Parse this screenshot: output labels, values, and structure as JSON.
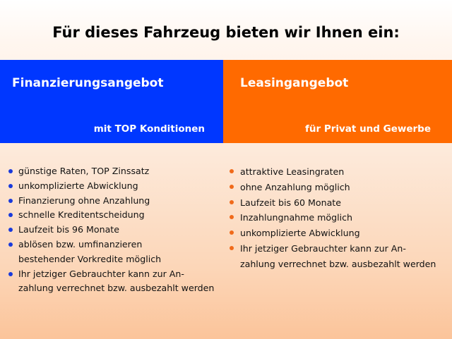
{
  "title": "Für dieses Fahrzeug bieten wir Ihnen ein:",
  "colors": {
    "financing": "#0037ff",
    "leasing": "#ff6a00"
  },
  "financing": {
    "heading": "Finanzierungsangebot",
    "subheading": "mit TOP Konditionen",
    "items": [
      "günstige Raten, TOP Zinssatz",
      "unkomplizierte Abwicklung",
      "Finanzierung ohne Anzahlung",
      "schnelle Kreditentscheidung",
      "Laufzeit bis 96 Monate",
      "ablösen bzw. umfinanzieren\nbestehender Vorkredite möglich",
      "Ihr jetziger Gebrauchter kann zur An-\nzahlung verrechnet bzw. ausbezahlt werden"
    ]
  },
  "leasing": {
    "heading": "Leasingangebot",
    "subheading": "für Privat und Gewerbe",
    "items": [
      "attraktive Leasingraten",
      "ohne Anzahlung möglich",
      "Laufzeit bis 60 Monate",
      "Inzahlungnahme möglich",
      "unkomplizierte Abwicklung",
      "Ihr jetziger Gebrauchter kann zur An-\nzahlung verrechnet bzw. ausbezahlt werden"
    ]
  }
}
